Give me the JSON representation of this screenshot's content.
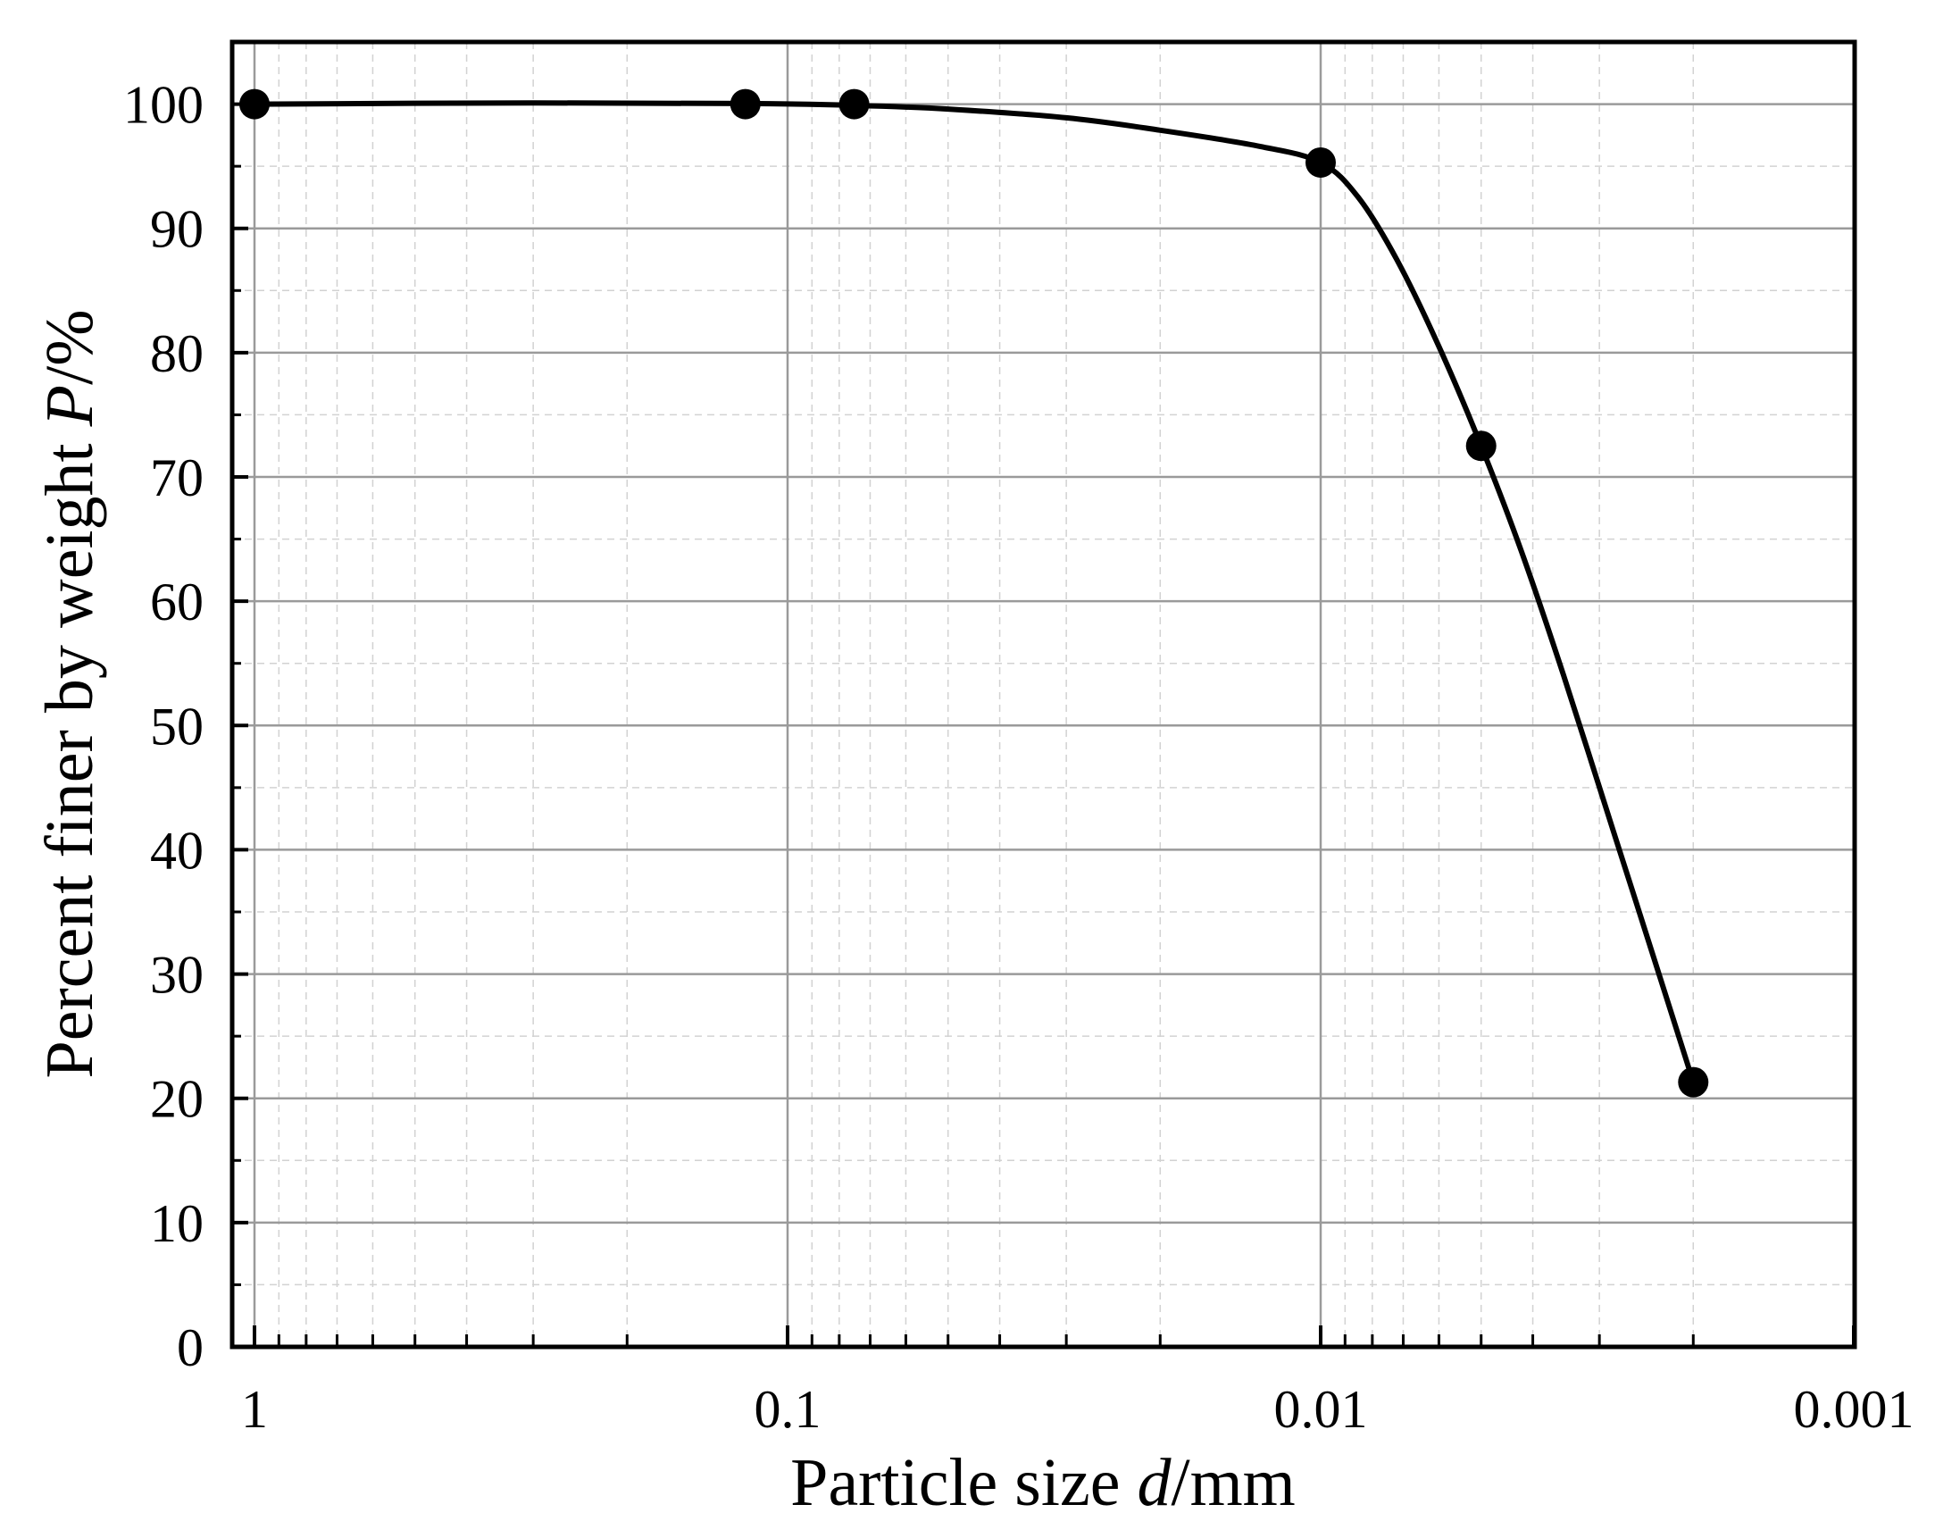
{
  "chart_data": {
    "type": "scatter",
    "x_scale": "log",
    "x_reversed": true,
    "xlim": [
      1,
      0.001
    ],
    "ylim": [
      0,
      105
    ],
    "grid": true,
    "legend": "none",
    "xlabel": {
      "prefix": "Particle size ",
      "var": "d",
      "suffix": "/mm"
    },
    "ylabel": {
      "prefix": "Percent finer by weight ",
      "var": "P",
      "suffix": "/%"
    },
    "x_ticks": [
      {
        "value": 1,
        "label": "1"
      },
      {
        "value": 0.1,
        "label": "0.1"
      },
      {
        "value": 0.01,
        "label": "0.01"
      },
      {
        "value": 0.001,
        "label": "0.001"
      }
    ],
    "y_ticks": [
      {
        "value": 0,
        "label": "0"
      },
      {
        "value": 10,
        "label": "10"
      },
      {
        "value": 20,
        "label": "20"
      },
      {
        "value": 30,
        "label": "30"
      },
      {
        "value": 40,
        "label": "40"
      },
      {
        "value": 50,
        "label": "50"
      },
      {
        "value": 60,
        "label": "60"
      },
      {
        "value": 70,
        "label": "70"
      },
      {
        "value": 80,
        "label": "80"
      },
      {
        "value": 90,
        "label": "90"
      },
      {
        "value": 100,
        "label": "100"
      }
    ],
    "series": [
      {
        "points": [
          {
            "x": 1.0,
            "y": 100
          },
          {
            "x": 0.12,
            "y": 100
          },
          {
            "x": 0.075,
            "y": 100
          },
          {
            "x": 0.01,
            "y": 95.3
          },
          {
            "x": 0.005,
            "y": 72.5
          },
          {
            "x": 0.002,
            "y": 21.3
          }
        ],
        "fit_curve": [
          {
            "x": 1.0,
            "y": 100
          },
          {
            "x": 0.3,
            "y": 100.1
          },
          {
            "x": 0.12,
            "y": 100.05
          },
          {
            "x": 0.075,
            "y": 99.9
          },
          {
            "x": 0.05,
            "y": 99.6
          },
          {
            "x": 0.03,
            "y": 98.9
          },
          {
            "x": 0.02,
            "y": 97.9
          },
          {
            "x": 0.013,
            "y": 96.6
          },
          {
            "x": 0.01,
            "y": 95.3
          },
          {
            "x": 0.0085,
            "y": 92.5
          },
          {
            "x": 0.0072,
            "y": 87.5
          },
          {
            "x": 0.006,
            "y": 80.5
          },
          {
            "x": 0.005,
            "y": 72.5
          },
          {
            "x": 0.0042,
            "y": 64
          },
          {
            "x": 0.0035,
            "y": 54
          },
          {
            "x": 0.0028,
            "y": 41
          },
          {
            "x": 0.0024,
            "y": 32
          },
          {
            "x": 0.002,
            "y": 21.3
          }
        ],
        "color": "#000000"
      }
    ]
  }
}
